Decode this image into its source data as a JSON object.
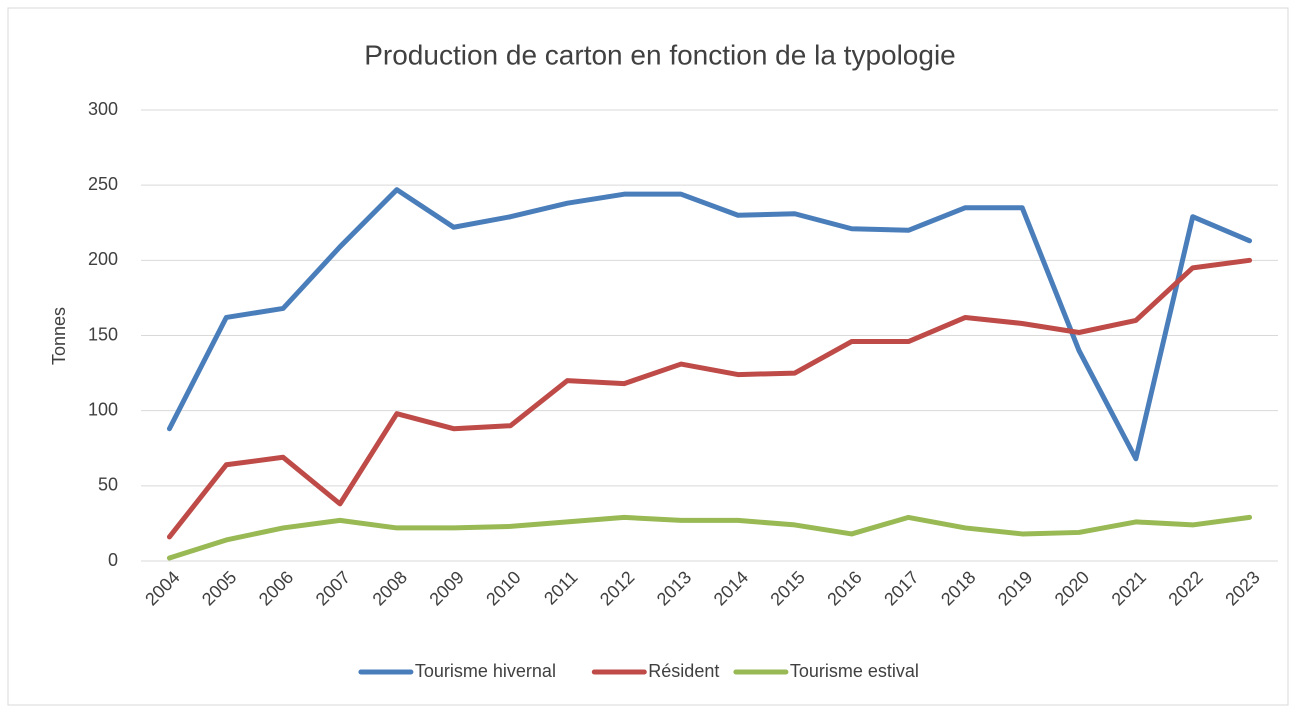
{
  "chart_data": {
    "type": "line",
    "title": "Production de carton en fonction de la typologie",
    "y_label": "Tonnes",
    "categories": [
      "2004",
      "2005",
      "2006",
      "2007",
      "2008",
      "2009",
      "2010",
      "2011",
      "2012",
      "2013",
      "2014",
      "2015",
      "2016",
      "2017",
      "2018",
      "2019",
      "2020",
      "2021",
      "2022",
      "2023"
    ],
    "series": [
      {
        "name": "Tourisme hivernal",
        "color": "#4a7ebb",
        "values": [
          88,
          162,
          168,
          209,
          247,
          222,
          229,
          238,
          244,
          244,
          230,
          231,
          221,
          220,
          235,
          235,
          140,
          68,
          229,
          213
        ]
      },
      {
        "name": "Résident",
        "color": "#be4b48",
        "values": [
          16,
          64,
          69,
          38,
          98,
          88,
          90,
          120,
          118,
          131,
          124,
          125,
          146,
          146,
          162,
          158,
          152,
          160,
          195,
          200
        ]
      },
      {
        "name": "Tourisme estival",
        "color": "#98b954",
        "values": [
          2,
          14,
          22,
          27,
          22,
          22,
          23,
          26,
          29,
          27,
          27,
          24,
          18,
          29,
          22,
          18,
          19,
          26,
          24,
          29
        ]
      }
    ],
    "ylim": [
      0,
      300
    ],
    "yticks": [
      0,
      50,
      100,
      150,
      200,
      250,
      300
    ],
    "grid": true,
    "legend": "bottom"
  }
}
